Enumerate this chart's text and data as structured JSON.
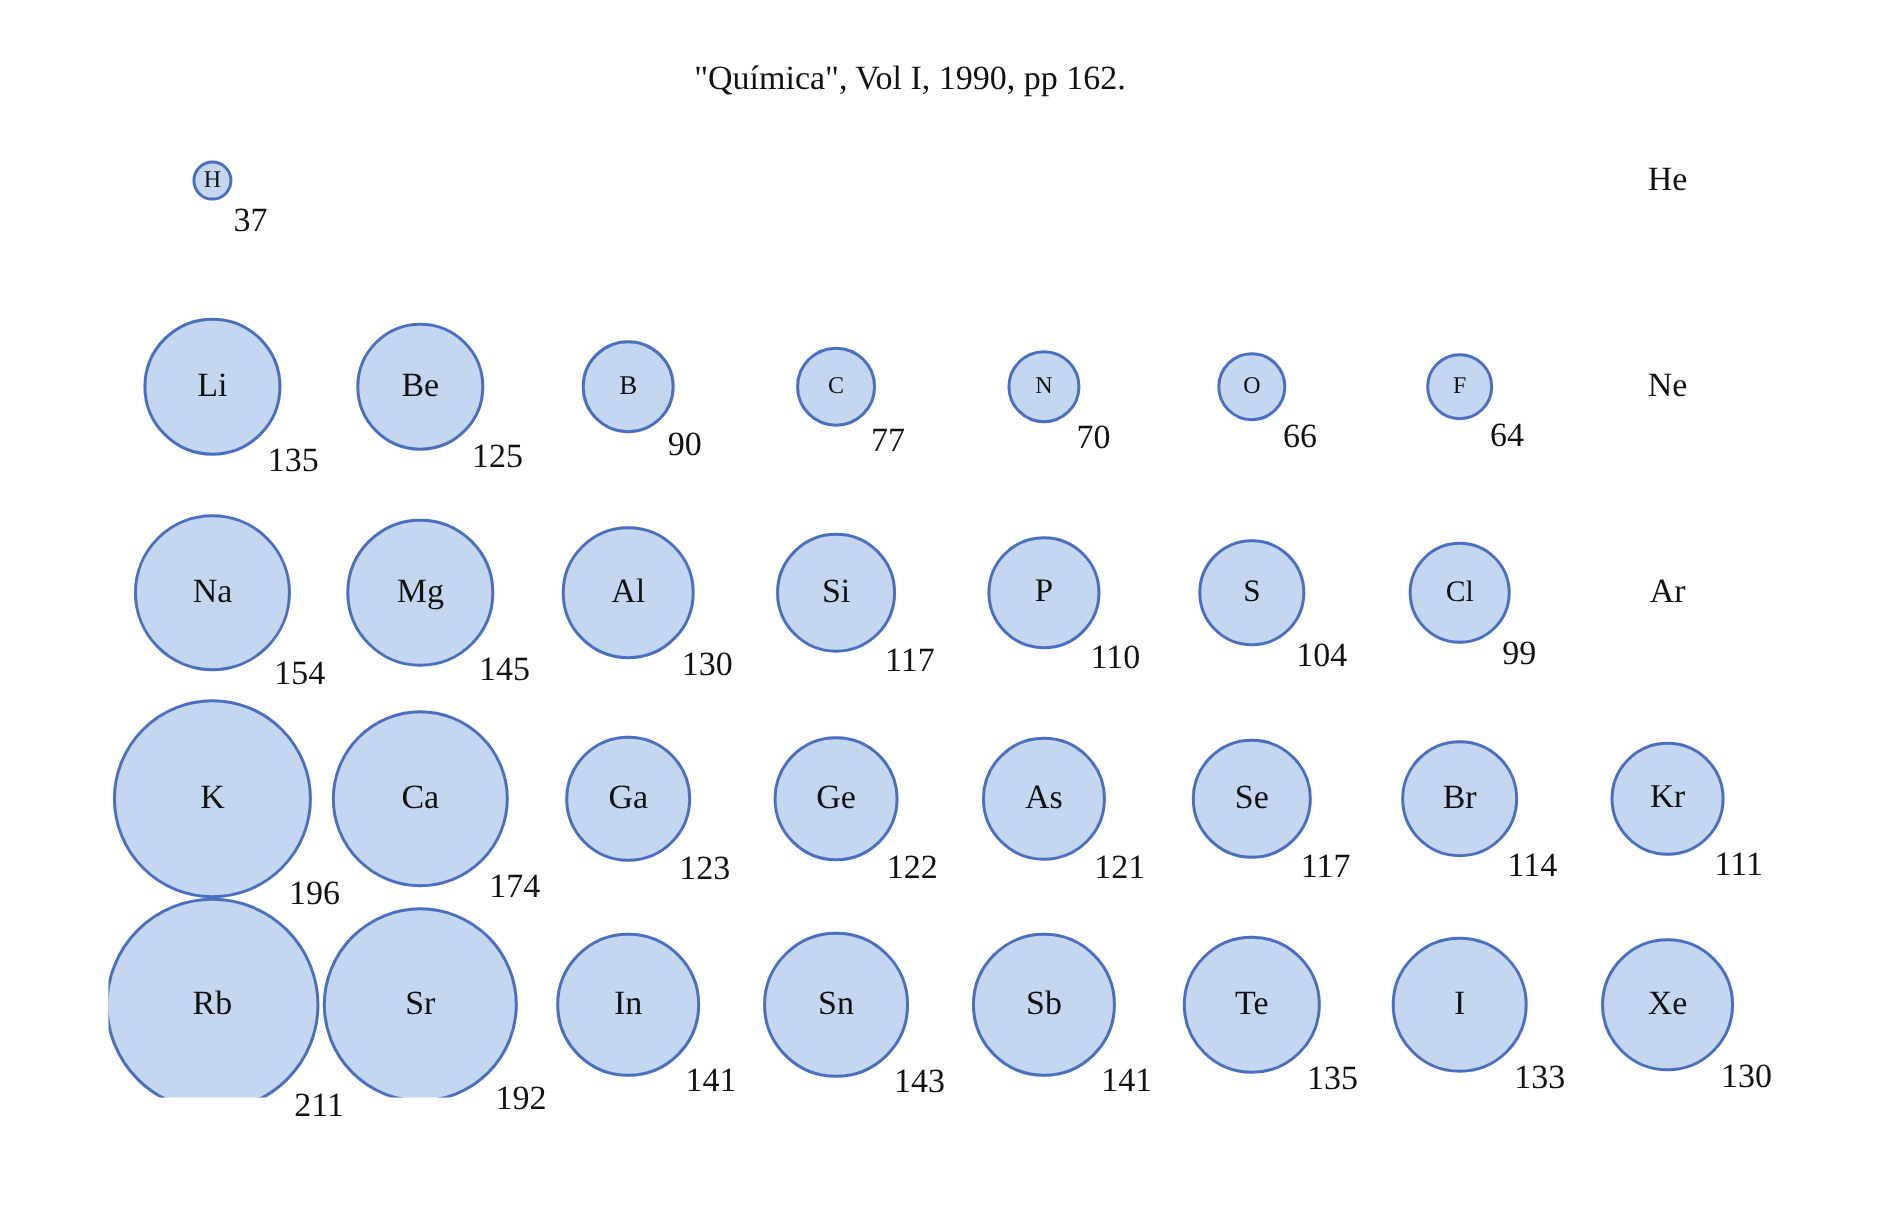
{
  "chart_data": {
    "type": "other",
    "title": "\"Química\", Vol I, 1990, pp 162.",
    "categories": [
      "H",
      null,
      null,
      null,
      null,
      null,
      null,
      "He",
      "Li",
      "Be",
      "B",
      "C",
      "N",
      "O",
      "F",
      "Ne",
      "Na",
      "Mg",
      "Al",
      "Si",
      "P",
      "S",
      "Cl",
      "Ar",
      "K",
      "Ca",
      "Ga",
      "Ge",
      "As",
      "Se",
      "Br",
      "Kr",
      "Rb",
      "Sr",
      "In",
      "Sn",
      "Sb",
      "Te",
      "I",
      "Xe"
    ],
    "values": [
      37,
      null,
      null,
      null,
      null,
      null,
      null,
      null,
      135,
      125,
      90,
      77,
      70,
      66,
      64,
      null,
      154,
      145,
      130,
      117,
      110,
      104,
      99,
      null,
      196,
      174,
      123,
      122,
      121,
      117,
      114,
      111,
      211,
      192,
      141,
      143,
      141,
      135,
      133,
      130
    ],
    "color": "#c4d6f0",
    "data_labels": true
  }
}
